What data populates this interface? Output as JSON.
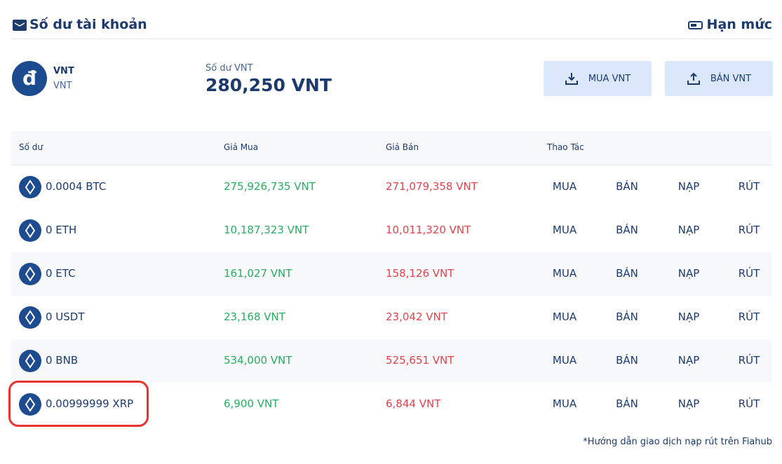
{
  "header": {
    "title": "Số dư tài khoản",
    "limit": "Hạn mức"
  },
  "wallet": {
    "symbol": "đ",
    "name": "VNT",
    "sub": "VNT",
    "balance_label": "Số dư VNT",
    "balance": "280,250 VNT",
    "buttons": [
      "MUA VNT",
      "BÁN VNT"
    ]
  },
  "table": {
    "headers": [
      "Số dư",
      "Giá Mua",
      "Giá Bán",
      "Thao Tác"
    ],
    "actions": [
      "MUA",
      "BÁN",
      "NẠP",
      "RÚT"
    ],
    "rows": [
      {
        "balance": "0.0004 BTC",
        "buy": "275,926,735 VNT",
        "sell": "271,079,358 VNT"
      },
      {
        "balance": "0 ETH",
        "buy": "10,187,323 VNT",
        "sell": "10,011,320 VNT"
      },
      {
        "balance": "0 ETC",
        "buy": "161,027 VNT",
        "sell": "158,126 VNT"
      },
      {
        "balance": "0 USDT",
        "buy": "23,168 VNT",
        "sell": "23,042 VNT"
      },
      {
        "balance": "0 BNB",
        "buy": "534,000 VNT",
        "sell": "525,651 VNT"
      },
      {
        "balance": "0.00999999 XRP",
        "buy": "6,900 VNT",
        "sell": "6,844 VNT"
      }
    ]
  },
  "footer": {
    "note": "*Hướng dẫn giao dịch nạp rút trên Fiahub"
  }
}
